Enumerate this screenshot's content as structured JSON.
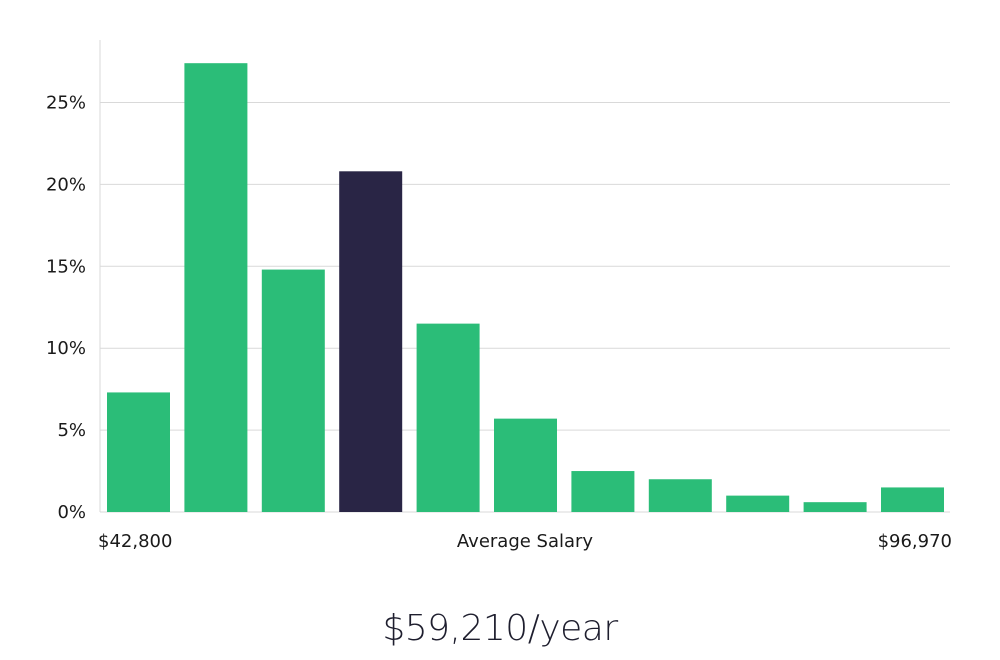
{
  "chart_data": {
    "type": "bar",
    "title": "",
    "xlabel": "Average Salary",
    "ylabel": "",
    "x_min_label": "$42,800",
    "x_max_label": "$96,970",
    "ylim": [
      0,
      28
    ],
    "yticks": [
      0,
      5,
      10,
      15,
      20,
      25
    ],
    "ytick_labels": [
      "0%",
      "5%",
      "10%",
      "15%",
      "20%",
      "25%"
    ],
    "values": [
      7.3,
      27.4,
      14.8,
      20.8,
      11.5,
      5.7,
      2.5,
      2.0,
      1.0,
      0.6,
      1.5
    ],
    "highlight_index": 3,
    "grid": true
  },
  "colors": {
    "bar": "#2bbd78",
    "bar_highlight": "#292545",
    "grid": "#d9d9d9"
  },
  "salary": {
    "average": "$59,210/year"
  }
}
